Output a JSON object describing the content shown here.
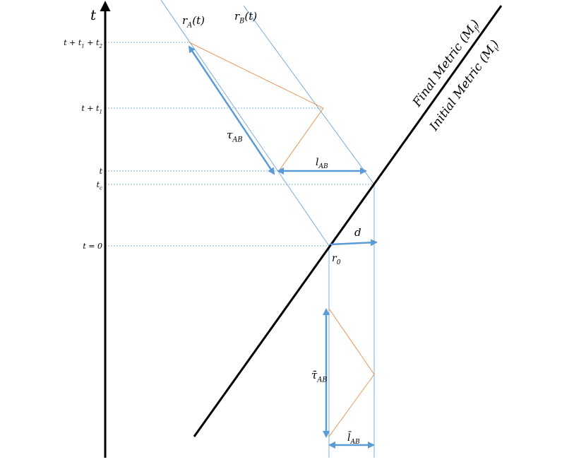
{
  "axis": {
    "label": [
      "t"
    ],
    "ticks": [
      [
        "t + t",
        "1",
        " + t",
        "2"
      ],
      [
        "t + t",
        "1"
      ],
      [
        "t"
      ],
      [
        "t",
        "c"
      ],
      [
        "t = 0"
      ]
    ]
  },
  "labels": {
    "rA": [
      "r",
      "A",
      "(t)"
    ],
    "rB": [
      "r",
      "B",
      "(t)"
    ],
    "tauAB": [
      "τ",
      "AB"
    ],
    "lAB": [
      "l",
      "AB"
    ],
    "d": [
      "d"
    ],
    "r0": [
      "r",
      "0"
    ],
    "tauBar": [
      "τ̄",
      "AB"
    ],
    "lBar": [
      "l̄",
      "AB"
    ],
    "final": [
      "Final Metric (M",
      "f",
      ")"
    ],
    "initial": [
      "Initial Metric (M",
      "i",
      ")"
    ]
  }
}
